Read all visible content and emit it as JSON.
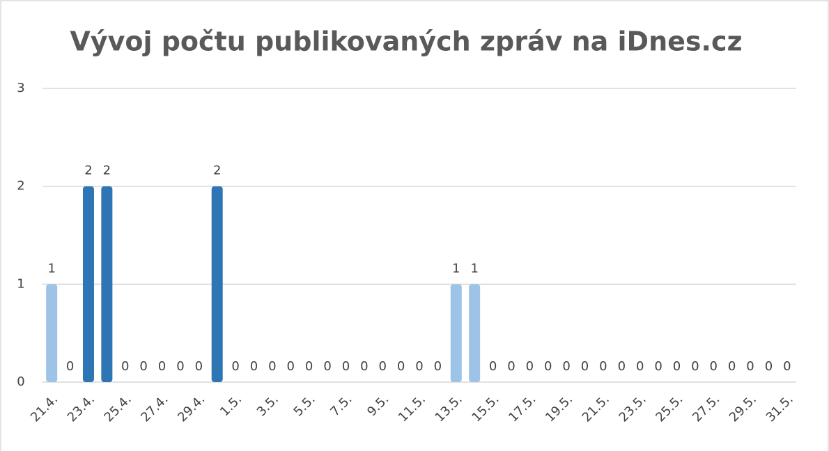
{
  "chart_data": {
    "type": "bar",
    "title": "Vývoj počtu publikovaných zpráv na iDnes.cz",
    "categories": [
      "21.4.",
      null,
      "23.4.",
      null,
      "25.4.",
      null,
      "27.4.",
      null,
      "29.4.",
      null,
      "1.5.",
      null,
      "3.5.",
      null,
      "5.5.",
      null,
      "7.5.",
      null,
      "9.5.",
      null,
      "11.5.",
      null,
      "13.5.",
      null,
      "15.5.",
      null,
      "17.5.",
      null,
      "19.5.",
      null,
      "21.5.",
      null,
      "23.5.",
      null,
      "25.5.",
      null,
      "27.5.",
      null,
      "29.5.",
      null,
      "31.5."
    ],
    "values": [
      1,
      0,
      2,
      2,
      0,
      0,
      0,
      0,
      0,
      2,
      0,
      0,
      0,
      0,
      0,
      0,
      0,
      0,
      0,
      0,
      0,
      0,
      1,
      1,
      0,
      0,
      0,
      0,
      0,
      0,
      0,
      0,
      0,
      0,
      0,
      0,
      0,
      0,
      0,
      0,
      0
    ],
    "colors": [
      "#9dc3e6",
      "#9dc3e6",
      "#2e75b6",
      "#2e75b6",
      "#9dc3e6",
      "#9dc3e6",
      "#9dc3e6",
      "#9dc3e6",
      "#9dc3e6",
      "#2e75b6",
      "#9dc3e6",
      "#9dc3e6",
      "#9dc3e6",
      "#9dc3e6",
      "#9dc3e6",
      "#9dc3e6",
      "#9dc3e6",
      "#9dc3e6",
      "#9dc3e6",
      "#9dc3e6",
      "#9dc3e6",
      "#9dc3e6",
      "#9dc3e6",
      "#9dc3e6",
      "#9dc3e6",
      "#9dc3e6",
      "#9dc3e6",
      "#9dc3e6",
      "#9dc3e6",
      "#9dc3e6",
      "#9dc3e6",
      "#9dc3e6",
      "#9dc3e6",
      "#9dc3e6",
      "#9dc3e6",
      "#9dc3e6",
      "#9dc3e6",
      "#9dc3e6",
      "#9dc3e6",
      "#9dc3e6",
      "#9dc3e6"
    ],
    "ylim": [
      0,
      3
    ],
    "yticks": [
      0,
      1,
      2,
      3
    ],
    "grid": true
  }
}
